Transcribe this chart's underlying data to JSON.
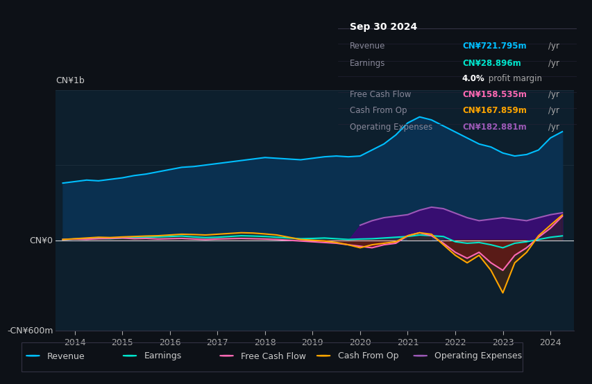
{
  "bg_color": "#0d1117",
  "plot_bg_color": "#0d1f2d",
  "title": "Sep 30 2024",
  "y_label_top": "CN¥1b",
  "y_label_bottom": "-CN¥600m",
  "y_label_zero": "CN¥0",
  "x_ticks": [
    2014,
    2015,
    2016,
    2017,
    2018,
    2019,
    2020,
    2021,
    2022,
    2023,
    2024
  ],
  "revenue_color": "#00bfff",
  "earnings_color": "#00e5cc",
  "fcf_color": "#ff69b4",
  "cashfromop_color": "#ffa500",
  "opex_color": "#9b59b6",
  "revenue_fill": "#0a3050",
  "legend_items": [
    {
      "label": "Revenue",
      "color": "#00bfff"
    },
    {
      "label": "Earnings",
      "color": "#00e5cc"
    },
    {
      "label": "Free Cash Flow",
      "color": "#ff69b4"
    },
    {
      "label": "Cash From Op",
      "color": "#ffa500"
    },
    {
      "label": "Operating Expenses",
      "color": "#9b59b6"
    }
  ],
  "tooltip": {
    "date": "Sep 30 2024",
    "revenue": "CN¥721.795m /yr",
    "earnings": "CN¥28.896m /yr",
    "profit_margin": "4.0%",
    "fcf": "CN¥158.535m /yr",
    "cashfromop": "CN¥167.859m /yr",
    "opex": "CN¥182.881m /yr"
  },
  "years": [
    2013.75,
    2014.0,
    2014.25,
    2014.5,
    2014.75,
    2015.0,
    2015.25,
    2015.5,
    2015.75,
    2016.0,
    2016.25,
    2016.5,
    2016.75,
    2017.0,
    2017.25,
    2017.5,
    2017.75,
    2018.0,
    2018.25,
    2018.5,
    2018.75,
    2019.0,
    2019.25,
    2019.5,
    2019.75,
    2020.0,
    2020.25,
    2020.5,
    2020.75,
    2021.0,
    2021.25,
    2021.5,
    2021.75,
    2022.0,
    2022.25,
    2022.5,
    2022.75,
    2023.0,
    2023.25,
    2023.5,
    2023.75,
    2024.0,
    2024.25
  ],
  "revenue": [
    380,
    390,
    400,
    395,
    405,
    415,
    430,
    440,
    455,
    470,
    485,
    490,
    500,
    510,
    520,
    530,
    540,
    550,
    545,
    540,
    535,
    545,
    555,
    560,
    555,
    560,
    600,
    640,
    700,
    780,
    820,
    800,
    760,
    720,
    680,
    640,
    620,
    580,
    560,
    570,
    600,
    680,
    722
  ],
  "earnings": [
    5,
    8,
    10,
    12,
    10,
    15,
    18,
    20,
    22,
    25,
    28,
    22,
    18,
    20,
    25,
    30,
    28,
    25,
    20,
    15,
    10,
    12,
    15,
    10,
    5,
    8,
    10,
    15,
    20,
    25,
    35,
    30,
    25,
    -10,
    -20,
    -15,
    -30,
    -50,
    -20,
    -10,
    5,
    20,
    29
  ],
  "fcf": [
    5,
    8,
    6,
    10,
    12,
    15,
    10,
    12,
    8,
    10,
    12,
    8,
    5,
    8,
    10,
    12,
    10,
    8,
    5,
    0,
    -5,
    -10,
    -15,
    -20,
    -30,
    -40,
    -50,
    -30,
    -20,
    30,
    50,
    30,
    -20,
    -80,
    -120,
    -80,
    -150,
    -200,
    -100,
    -50,
    20,
    80,
    159
  ],
  "cashfromop": [
    5,
    10,
    15,
    20,
    18,
    22,
    25,
    28,
    30,
    35,
    40,
    38,
    35,
    40,
    45,
    50,
    48,
    42,
    35,
    20,
    5,
    0,
    -5,
    -15,
    -30,
    -50,
    -30,
    -20,
    -10,
    30,
    50,
    40,
    -30,
    -100,
    -150,
    -100,
    -200,
    -350,
    -150,
    -80,
    30,
    100,
    168
  ],
  "opex": [
    0,
    0,
    0,
    0,
    0,
    0,
    0,
    0,
    0,
    0,
    0,
    0,
    0,
    0,
    0,
    0,
    0,
    0,
    0,
    0,
    0,
    0,
    0,
    0,
    0,
    100,
    130,
    150,
    160,
    170,
    200,
    220,
    210,
    180,
    150,
    130,
    140,
    150,
    140,
    130,
    150,
    170,
    183
  ]
}
